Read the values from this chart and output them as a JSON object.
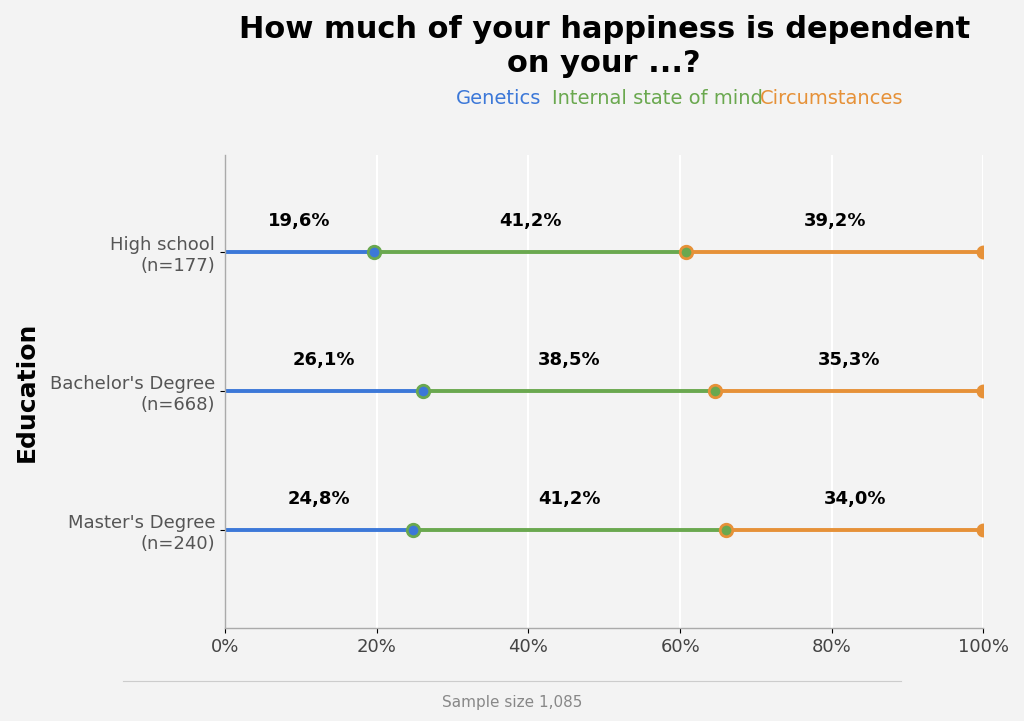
{
  "title": "How much of your happiness is dependent\non your ...?",
  "ylabel": "Education",
  "xlabel_note": "Sample size 1,085",
  "background_color": "#f3f3f3",
  "categories": [
    "High school\n(n=177)",
    "Bachelor's Degree\n(n=668)",
    "Master's Degree\n(n=240)"
  ],
  "series": [
    {
      "name": "Genetics",
      "color": "#3c78d8",
      "values": [
        19.6,
        26.1,
        24.8
      ],
      "labels": [
        "19,6%",
        "26,1%",
        "24,8%"
      ]
    },
    {
      "name": "Internal state of mind",
      "color": "#6aa84f",
      "values": [
        41.2,
        38.5,
        41.2
      ],
      "labels": [
        "41,2%",
        "38,5%",
        "41,2%"
      ]
    },
    {
      "name": "Circumstances",
      "color": "#e69138",
      "values": [
        39.2,
        35.3,
        34.0
      ],
      "labels": [
        "39,2%",
        "35,3%",
        "34,0%"
      ]
    }
  ],
  "xlim": [
    0,
    100
  ],
  "xticks": [
    0,
    20,
    40,
    60,
    80,
    100
  ],
  "xticklabels": [
    "0%",
    "20%",
    "40%",
    "60%",
    "80%",
    "100%"
  ],
  "title_fontsize": 22,
  "cat_fontsize": 13,
  "legend_fontsize": 14,
  "tick_fontsize": 13,
  "data_label_fontsize": 13,
  "line_width": 2.8,
  "marker_size": 9,
  "ylabel_fontsize": 18
}
